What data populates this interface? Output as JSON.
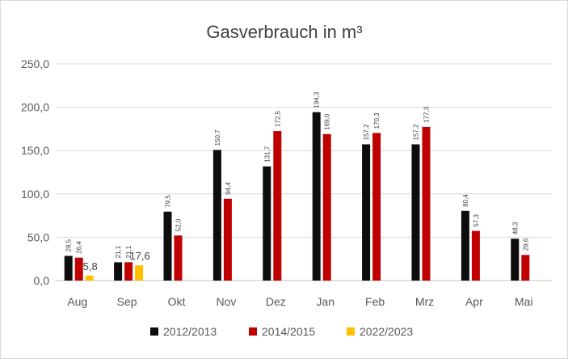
{
  "chart_data": {
    "type": "bar",
    "title": "Gasverbrauch  in m³",
    "xlabel": "",
    "ylabel": "",
    "ylim": [
      0,
      250
    ],
    "yticks": [
      "0,0",
      "50,0",
      "100,0",
      "150,0",
      "200,0",
      "250,0"
    ],
    "grid": true,
    "legend_position": "bottom",
    "categories": [
      "Aug",
      "Sep",
      "Okt",
      "Nov",
      "Dez",
      "Jan",
      "Feb",
      "Mrz",
      "Apr",
      "Mai"
    ],
    "series": [
      {
        "name": "2012/2013",
        "color": "#0d0d0d",
        "values": [
          28.5,
          21.1,
          79.5,
          150.7,
          131.7,
          194.3,
          157.2,
          157.2,
          80.4,
          48.3
        ],
        "labels": [
          "28,5",
          "21,1",
          "79,5",
          "150,7",
          "131,7",
          "194,3",
          "157,2",
          "157,2",
          "80,4",
          "48,3"
        ]
      },
      {
        "name": "2014/2015",
        "color": "#c00000",
        "values": [
          26.4,
          21.1,
          52.0,
          94.4,
          172.5,
          169.0,
          170.3,
          177.3,
          57.3,
          29.6
        ],
        "labels": [
          "26,4",
          "21,1",
          "52,0",
          "94,4",
          "172,5",
          "169,0",
          "170,3",
          "177,3",
          "57,3",
          "29,6"
        ]
      },
      {
        "name": "2022/2023",
        "color": "#ffc000",
        "values": [
          5.8,
          17.6,
          null,
          null,
          null,
          null,
          null,
          null,
          null,
          null
        ],
        "labels": [
          "5,8",
          "17,6",
          null,
          null,
          null,
          null,
          null,
          null,
          null,
          null
        ]
      }
    ]
  }
}
